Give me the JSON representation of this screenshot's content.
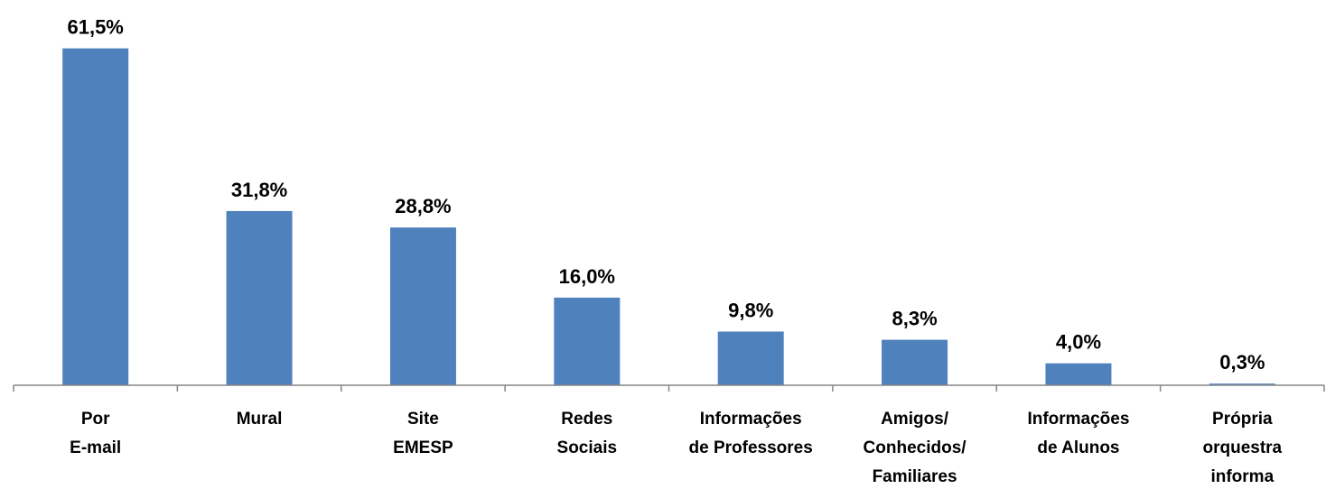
{
  "chart_data": {
    "type": "bar",
    "categories": [
      "Por\nE-mail",
      "Mural",
      "Site\nEMESP",
      "Redes\nSociais",
      "Informações\nde Professores",
      "Amigos/\nConhecidos/\nFamiliares",
      "Informações\nde Alunos",
      "Própria\norquestra\ninforma"
    ],
    "values": [
      61.5,
      31.8,
      28.8,
      16.0,
      9.8,
      8.3,
      4.0,
      0.3
    ],
    "value_labels": [
      "61,5%",
      "31,8%",
      "28,8%",
      "16,0%",
      "9,8%",
      "8,3%",
      "4,0%",
      "0,3%"
    ],
    "color": "#4f81bd",
    "ylim": [
      0,
      70
    ]
  }
}
